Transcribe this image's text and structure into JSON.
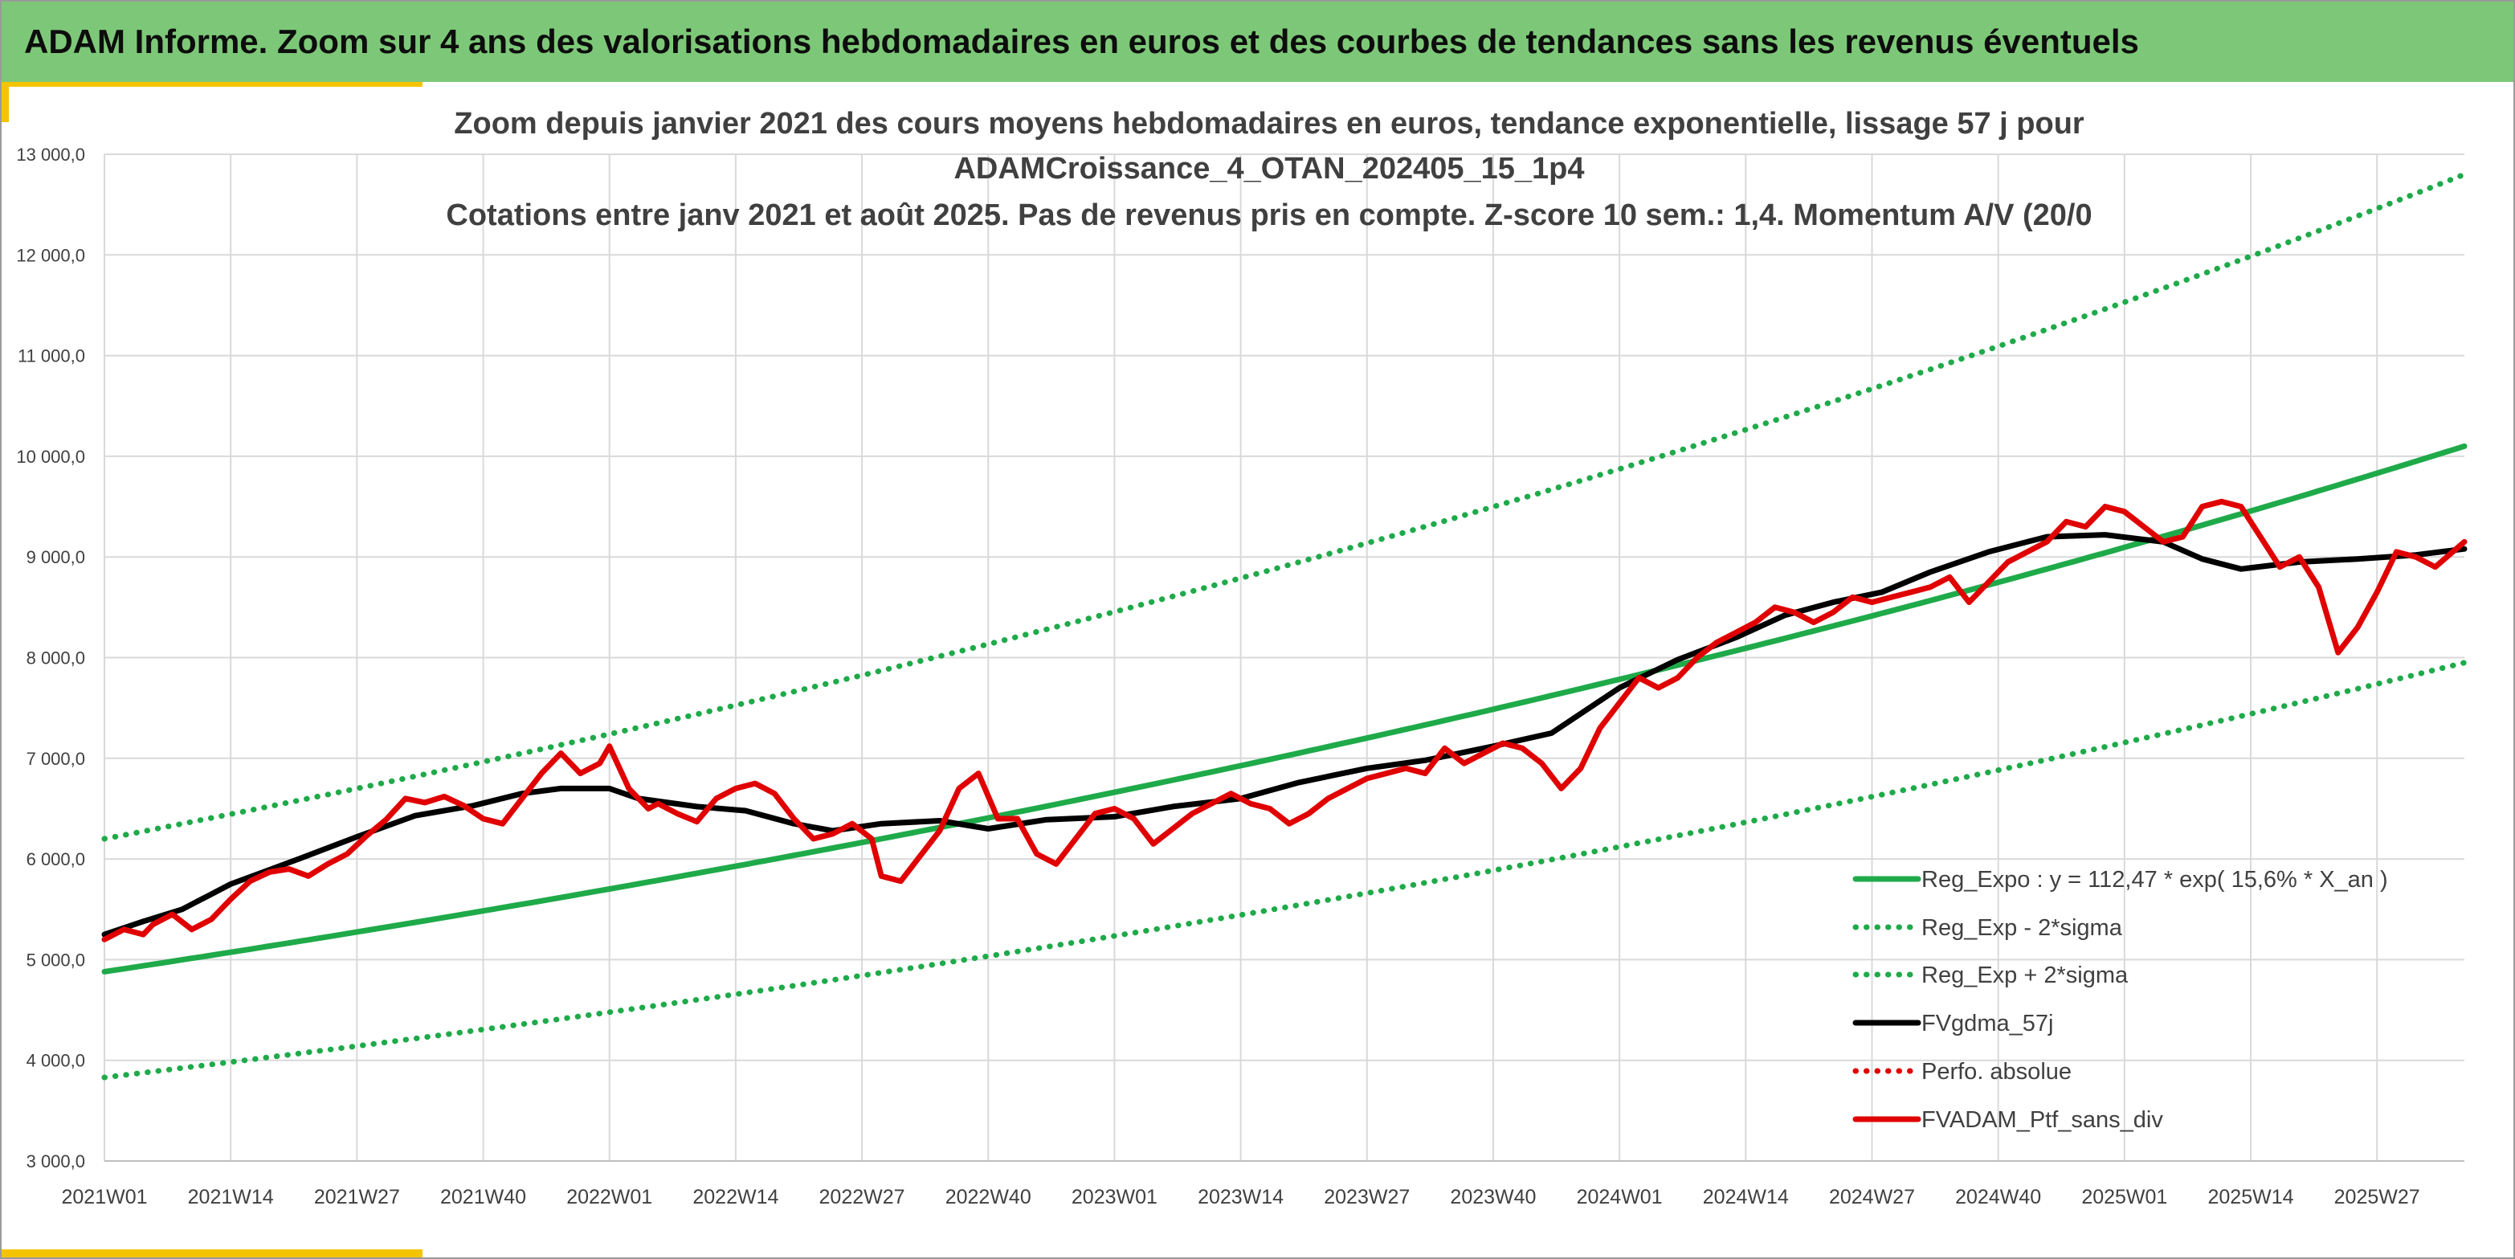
{
  "page": {
    "banner_title": "ADAM Informe. Zoom sur 4 ans des valorisations hebdomadaires en euros et des courbes de tendances sans les revenus éventuels",
    "colors": {
      "banner": "#7dc878",
      "accent": "#f5c400",
      "frame": "#9a9a9a"
    }
  },
  "chart_data": {
    "type": "line",
    "title_lines": [
      "Zoom depuis janvier 2021 des cours moyens hebdomadaires en euros, tendance exponentielle, lissage 57 j pour",
      "ADAMCroissance_4_OTAN_202405_15_1p4",
      "Cotations entre janv 2021 et août 2025. Pas de revenus pris en compte. Z-score 10 sem.: 1,4. Momentum A/V (20/0"
    ],
    "xlabel": "",
    "ylabel": "",
    "ylim": [
      3000,
      13000
    ],
    "y_ticks": [
      "3 000,0",
      "4 000,0",
      "5 000,0",
      "6 000,0",
      "7 000,0",
      "8 000,0",
      "9 000,0",
      "10 000,0",
      "11 000,0",
      "12 000,0",
      "13 000,0"
    ],
    "x_tick_labels": [
      "2021W01",
      "2021W14",
      "2021W27",
      "2021W40",
      "2022W01",
      "2022W14",
      "2022W27",
      "2022W40",
      "2023W01",
      "2023W14",
      "2023W27",
      "2023W40",
      "2024W01",
      "2024W14",
      "2024W27",
      "2024W40",
      "2025W01",
      "2025W14",
      "2025W27"
    ],
    "x_range_weeks": [
      0,
      243
    ],
    "grid": true,
    "legend_position": "bottom-right",
    "legend": [
      {
        "label": "Reg_Expo : y = 112,47 * exp( 15,6% *  X_an )",
        "color": "#1faa4a",
        "style": "solid"
      },
      {
        "label": "Reg_Exp - 2*sigma",
        "color": "#1faa4a",
        "style": "dotted"
      },
      {
        "label": "Reg_Exp + 2*sigma",
        "color": "#1faa4a",
        "style": "dotted"
      },
      {
        "label": "FVgdma_57j",
        "color": "#000000",
        "style": "solid"
      },
      {
        "label": "Perfo. absolue",
        "color": "#e00000",
        "style": "dotted"
      },
      {
        "label": "FVADAM_Ptf_sans_div",
        "color": "#e00000",
        "style": "solid"
      }
    ],
    "series": [
      {
        "name": "Reg_Expo : y = 112,47 * exp( 15,6% *  X_an )",
        "color": "#1faa4a",
        "style": "solid",
        "x": [
          0,
          243
        ],
        "y": [
          4880,
          10100
        ]
      },
      {
        "name": "Reg_Exp - 2*sigma",
        "color": "#1faa4a",
        "style": "dotted",
        "x": [
          0,
          243
        ],
        "y": [
          3830,
          7950
        ]
      },
      {
        "name": "Reg_Exp + 2*sigma",
        "color": "#1faa4a",
        "style": "dotted",
        "x": [
          0,
          243
        ],
        "y": [
          6200,
          12800
        ]
      },
      {
        "name": "FVgdma_57j",
        "color": "#000000",
        "style": "solid",
        "x": [
          0,
          4,
          8,
          13,
          20,
          26,
          32,
          38,
          43,
          47,
          52,
          55,
          61,
          66,
          71,
          75,
          80,
          86,
          91,
          97,
          104,
          110,
          117,
          123,
          130,
          136,
          143,
          149,
          156,
          162,
          168,
          173,
          178,
          183,
          188,
          194,
          200,
          206,
          212,
          216,
          220,
          226,
          232,
          238,
          243
        ],
        "y": [
          5250,
          5380,
          5500,
          5750,
          6000,
          6220,
          6430,
          6530,
          6650,
          6700,
          6700,
          6600,
          6520,
          6480,
          6350,
          6280,
          6350,
          6380,
          6300,
          6390,
          6420,
          6520,
          6600,
          6760,
          6900,
          6980,
          7120,
          7250,
          7700,
          7980,
          8200,
          8420,
          8550,
          8650,
          8850,
          9050,
          9200,
          9220,
          9150,
          8980,
          8880,
          8950,
          8980,
          9020,
          9080
        ]
      },
      {
        "name": "FVADAM_Ptf_sans_div",
        "color": "#e00000",
        "style": "solid",
        "x": [
          0,
          2,
          4,
          5,
          7,
          9,
          11,
          13,
          15,
          17,
          19,
          21,
          23,
          25,
          27,
          29,
          31,
          33,
          35,
          37,
          39,
          41,
          43,
          45,
          47,
          49,
          51,
          52,
          54,
          56,
          57,
          59,
          61,
          63,
          65,
          67,
          69,
          71,
          73,
          75,
          77,
          79,
          80,
          82,
          84,
          86,
          88,
          90,
          92,
          94,
          96,
          98,
          100,
          102,
          104,
          106,
          108,
          110,
          112,
          114,
          116,
          118,
          120,
          122,
          124,
          126,
          128,
          130,
          132,
          134,
          136,
          138,
          140,
          142,
          144,
          146,
          148,
          150,
          152,
          154,
          156,
          158,
          160,
          162,
          164,
          166,
          168,
          170,
          172,
          174,
          176,
          178,
          180,
          182,
          184,
          186,
          188,
          190,
          192,
          194,
          196,
          198,
          200,
          202,
          204,
          206,
          208,
          210,
          212,
          214,
          216,
          218,
          220,
          222,
          224,
          226,
          228,
          230,
          232,
          234,
          236,
          238,
          240,
          243
        ],
        "y": [
          5200,
          5300,
          5250,
          5350,
          5450,
          5300,
          5400,
          5600,
          5780,
          5870,
          5900,
          5830,
          5950,
          6050,
          6230,
          6390,
          6600,
          6560,
          6620,
          6530,
          6400,
          6350,
          6600,
          6850,
          7050,
          6850,
          6950,
          7120,
          6700,
          6500,
          6550,
          6450,
          6370,
          6600,
          6700,
          6750,
          6650,
          6400,
          6200,
          6250,
          6350,
          6200,
          5830,
          5780,
          6030,
          6280,
          6700,
          6850,
          6400,
          6400,
          6050,
          5950,
          6200,
          6450,
          6500,
          6400,
          6150,
          6300,
          6450,
          6550,
          6650,
          6550,
          6500,
          6350,
          6450,
          6600,
          6700,
          6800,
          6850,
          6900,
          6850,
          7100,
          6950,
          7050,
          7150,
          7100,
          6950,
          6700,
          6900,
          7300,
          7550,
          7800,
          7700,
          7800,
          8000,
          8150,
          8250,
          8350,
          8500,
          8450,
          8350,
          8450,
          8600,
          8550,
          8600,
          8650,
          8700,
          8800,
          8550,
          8750,
          8950,
          9050,
          9150,
          9350,
          9300,
          9500,
          9450,
          9300,
          9150,
          9200,
          9500,
          9550,
          9500,
          9200,
          8900,
          9000,
          8700,
          8050,
          8300,
          8650,
          9050,
          9000,
          8900,
          9150
        ]
      }
    ]
  }
}
